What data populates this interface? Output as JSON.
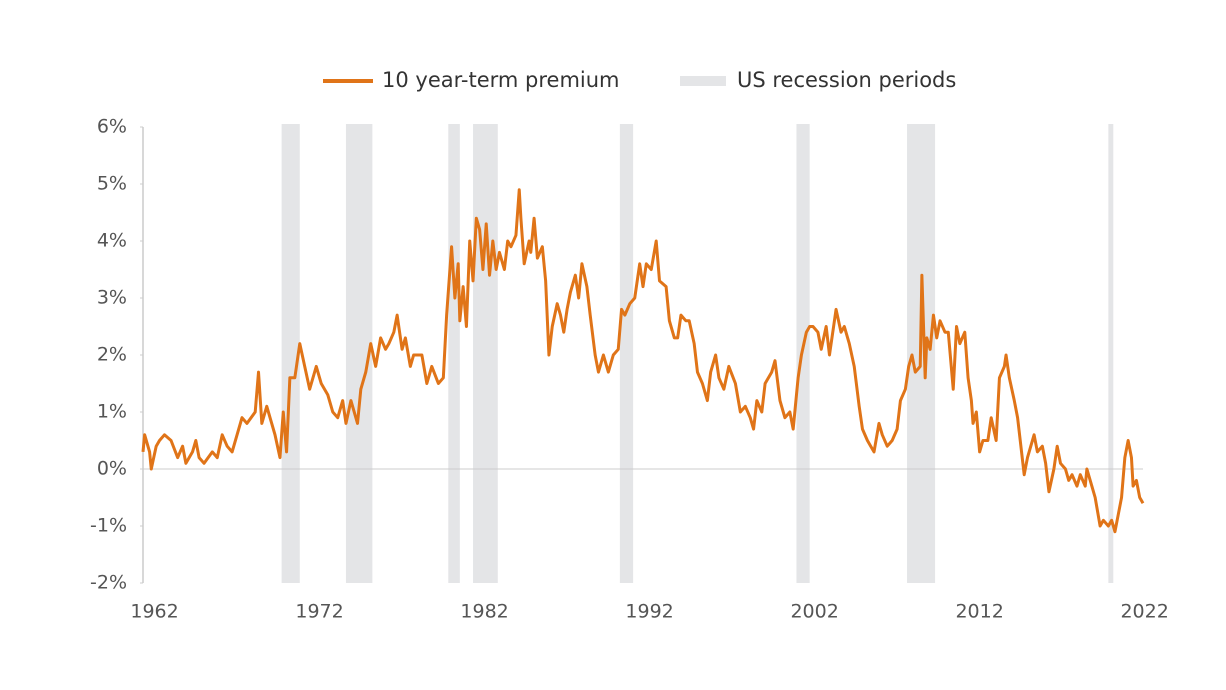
{
  "chart_data": {
    "type": "line",
    "x": [
      1961.3,
      1961.4,
      1961.7,
      1961.8,
      1962.1,
      1962.3,
      1962.6,
      1963.0,
      1963.4,
      1963.7,
      1963.9,
      1964.3,
      1964.5,
      1964.7,
      1965.0,
      1965.5,
      1965.8,
      1966.1,
      1966.4,
      1966.7,
      1967.0,
      1967.3,
      1967.6,
      1968.1,
      1968.3,
      1968.5,
      1968.8,
      1969.1,
      1969.3,
      1969.6,
      1969.8,
      1970.0,
      1970.2,
      1970.5,
      1970.8,
      1971.1,
      1971.4,
      1971.8,
      1972.1,
      1972.5,
      1972.8,
      1973.1,
      1973.4,
      1973.6,
      1973.9,
      1974.3,
      1974.5,
      1974.8,
      1975.1,
      1975.4,
      1975.7,
      1976.0,
      1976.2,
      1976.5,
      1976.7,
      1977.0,
      1977.2,
      1977.5,
      1977.7,
      1978.2,
      1978.5,
      1978.8,
      1979.2,
      1979.5,
      1979.7,
      1980.0,
      1980.2,
      1980.4,
      1980.5,
      1980.7,
      1980.9,
      1981.1,
      1981.3,
      1981.5,
      1981.7,
      1981.9,
      1982.1,
      1982.3,
      1982.5,
      1982.7,
      1982.9,
      1983.2,
      1983.4,
      1983.6,
      1983.9,
      1984.1,
      1984.2,
      1984.4,
      1984.7,
      1984.8,
      1985.0,
      1985.2,
      1985.5,
      1985.7,
      1985.9,
      1986.1,
      1986.4,
      1986.6,
      1986.8,
      1987.0,
      1987.2,
      1987.5,
      1987.7,
      1987.9,
      1988.2,
      1988.4,
      1988.7,
      1988.9,
      1989.2,
      1989.5,
      1989.8,
      1990.1,
      1990.3,
      1990.5,
      1990.8,
      1991.1,
      1991.4,
      1991.6,
      1991.8,
      1992.1,
      1992.4,
      1992.6,
      1993.0,
      1993.2,
      1993.5,
      1993.7,
      1993.9,
      1994.2,
      1994.4,
      1994.7,
      1994.9,
      1995.2,
      1995.5,
      1995.7,
      1996.0,
      1996.2,
      1996.5,
      1996.8,
      1997.2,
      1997.5,
      1997.8,
      1998.1,
      1998.3,
      1998.5,
      1998.8,
      1999.0,
      1999.4,
      1999.6,
      1999.9,
      2000.2,
      2000.5,
      2000.7,
      2001.0,
      2001.2,
      2001.5,
      2001.7,
      2001.9,
      2002.2,
      2002.4,
      2002.7,
      2002.9,
      2003.2,
      2003.3,
      2003.6,
      2003.8,
      2004.1,
      2004.4,
      2004.7,
      2004.9,
      2005.2,
      2005.4,
      2005.6,
      2005.9,
      2006.1,
      2006.4,
      2006.7,
      2007.0,
      2007.2,
      2007.5,
      2007.7,
      2007.9,
      2008.1,
      2008.4,
      2008.5,
      2008.7,
      2008.8,
      2009.0,
      2009.2,
      2009.4,
      2009.6,
      2009.9,
      2010.1,
      2010.4,
      2010.6,
      2010.8,
      2011.1,
      2011.3,
      2011.5,
      2011.6,
      2011.8,
      2012.0,
      2012.2,
      2012.5,
      2012.7,
      2013.0,
      2013.2,
      2013.5,
      2013.6,
      2013.8,
      2014.1,
      2014.3,
      2014.5,
      2014.7,
      2014.9,
      2015.1,
      2015.3,
      2015.5,
      2015.8,
      2016.0,
      2016.2,
      2016.5,
      2016.7,
      2016.9,
      2017.2,
      2017.4,
      2017.6,
      2017.9,
      2018.1,
      2018.4,
      2018.5,
      2018.8,
      2019.0,
      2019.3,
      2019.5,
      2019.8,
      2020.0,
      2020.2,
      2020.4,
      2020.6,
      2020.8,
      2021.0,
      2021.2,
      2021.3,
      2021.5,
      2021.7,
      2021.9
    ],
    "series": [
      {
        "name": "10 year-term premium",
        "color": "#e07418",
        "values": [
          0.3,
          0.6,
          0.3,
          0.0,
          0.4,
          0.5,
          0.6,
          0.5,
          0.2,
          0.4,
          0.1,
          0.3,
          0.5,
          0.2,
          0.1,
          0.3,
          0.2,
          0.6,
          0.4,
          0.3,
          0.6,
          0.9,
          0.8,
          1.0,
          1.7,
          0.8,
          1.1,
          0.8,
          0.6,
          0.2,
          1.0,
          0.3,
          1.6,
          1.6,
          2.2,
          1.8,
          1.4,
          1.8,
          1.5,
          1.3,
          1.0,
          0.9,
          1.2,
          0.8,
          1.2,
          0.8,
          1.4,
          1.7,
          2.2,
          1.8,
          2.3,
          2.1,
          2.2,
          2.4,
          2.7,
          2.1,
          2.3,
          1.8,
          2.0,
          2.0,
          1.5,
          1.8,
          1.5,
          1.6,
          2.7,
          3.9,
          3.0,
          3.6,
          2.6,
          3.2,
          2.5,
          4.0,
          3.3,
          4.4,
          4.2,
          3.5,
          4.3,
          3.4,
          4.0,
          3.5,
          3.8,
          3.5,
          4.0,
          3.9,
          4.1,
          4.9,
          4.4,
          3.6,
          4.0,
          3.8,
          4.4,
          3.7,
          3.9,
          3.3,
          2.0,
          2.5,
          2.9,
          2.7,
          2.4,
          2.8,
          3.1,
          3.4,
          3.0,
          3.6,
          3.2,
          2.7,
          2.0,
          1.7,
          2.0,
          1.7,
          2.0,
          2.1,
          2.8,
          2.7,
          2.9,
          3.0,
          3.6,
          3.2,
          3.6,
          3.5,
          4.0,
          3.3,
          3.2,
          2.6,
          2.3,
          2.3,
          2.7,
          2.6,
          2.6,
          2.2,
          1.7,
          1.5,
          1.2,
          1.7,
          2.0,
          1.6,
          1.4,
          1.8,
          1.5,
          1.0,
          1.1,
          0.9,
          0.7,
          1.2,
          1.0,
          1.5,
          1.7,
          1.9,
          1.2,
          0.9,
          1.0,
          0.7,
          1.6,
          2.0,
          2.4,
          2.5,
          2.5,
          2.4,
          2.1,
          2.5,
          2.0,
          2.6,
          2.8,
          2.4,
          2.5,
          2.2,
          1.8,
          1.1,
          0.7,
          0.5,
          0.4,
          0.3,
          0.8,
          0.6,
          0.4,
          0.5,
          0.7,
          1.2,
          1.4,
          1.8,
          2.0,
          1.7,
          1.8,
          3.4,
          1.6,
          2.3,
          2.1,
          2.7,
          2.3,
          2.6,
          2.4,
          2.4,
          1.4,
          2.5,
          2.2,
          2.4,
          1.6,
          1.2,
          0.8,
          1.0,
          0.3,
          0.5,
          0.5,
          0.9,
          0.5,
          1.6,
          1.8,
          2.0,
          1.6,
          1.2,
          0.9,
          0.4,
          -0.1,
          0.2,
          0.4,
          0.6,
          0.3,
          0.4,
          0.1,
          -0.4,
          0.0,
          0.4,
          0.1,
          0.0,
          -0.2,
          -0.1,
          -0.3,
          -0.1,
          -0.3,
          0.0,
          -0.3,
          -0.5,
          -1.0,
          -0.9,
          -1.0,
          -0.9,
          -1.1,
          -0.8,
          -0.5,
          0.2,
          0.5,
          0.2,
          -0.3,
          -0.2,
          -0.5,
          -0.6
        ]
      }
    ],
    "shading": {
      "name": "US recession periods",
      "color": "#e4e5e7",
      "periods": [
        [
          1969.7,
          1970.8
        ],
        [
          1973.6,
          1975.2
        ],
        [
          1979.8,
          1980.5
        ],
        [
          1981.3,
          1982.8
        ],
        [
          1990.2,
          1991.0
        ],
        [
          2000.9,
          2001.7
        ],
        [
          2007.6,
          2009.3
        ],
        [
          2019.8,
          2020.1
        ]
      ]
    },
    "xlim": [
      1961.3,
      2021.9
    ],
    "xticks": [
      1962,
      1972,
      1982,
      1992,
      2002,
      2012,
      2022
    ],
    "ylim": [
      -2,
      6
    ],
    "yticks": [
      {
        "value": -2,
        "label": "-2%"
      },
      {
        "value": -1,
        "label": "-1%"
      },
      {
        "value": 0,
        "label": "0%"
      },
      {
        "value": 1,
        "label": "1%"
      },
      {
        "value": 2,
        "label": "2%"
      },
      {
        "value": 3,
        "label": "3%"
      },
      {
        "value": 4,
        "label": "4%"
      },
      {
        "value": 5,
        "label": "5%"
      },
      {
        "value": 6,
        "label": "6%"
      }
    ]
  }
}
